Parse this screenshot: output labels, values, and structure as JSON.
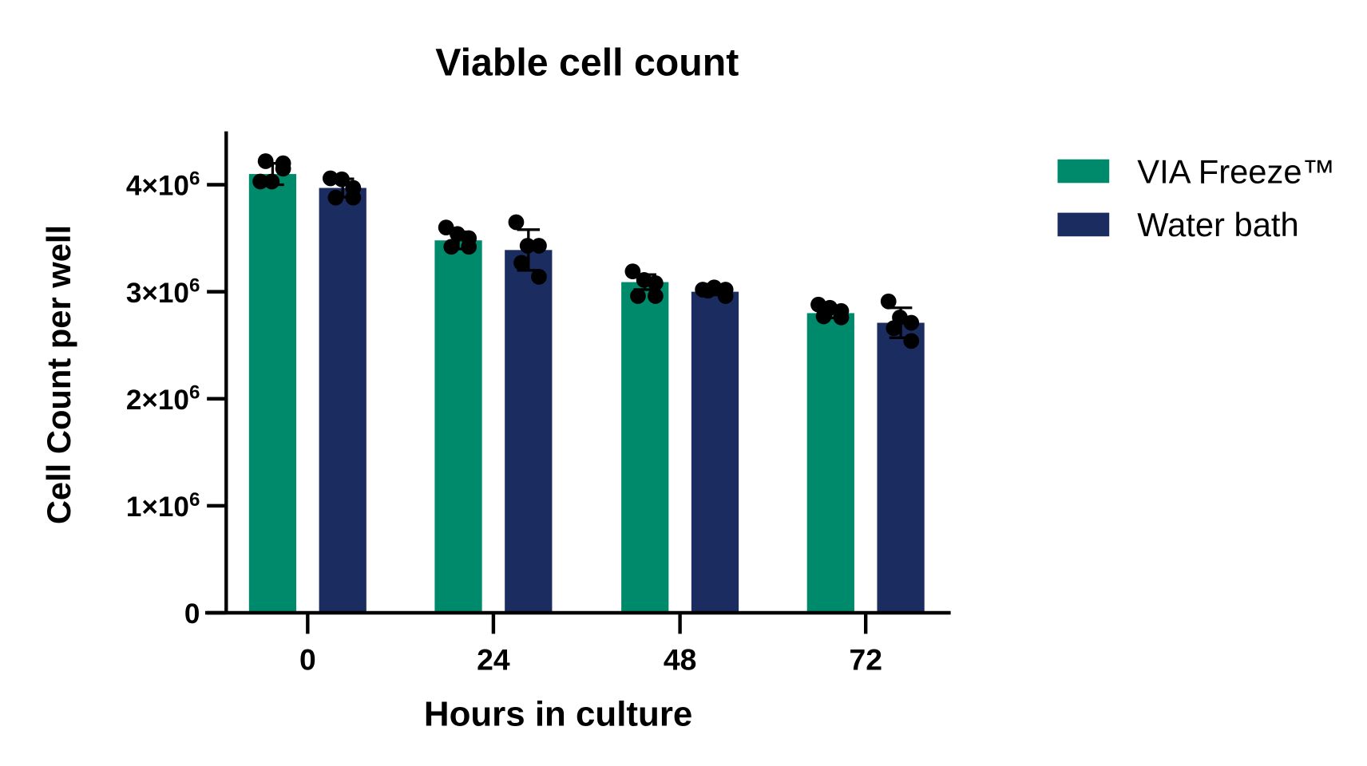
{
  "chart_data": {
    "type": "bar",
    "title": "Viable cell count",
    "xlabel": "Hours in culture",
    "ylabel": "Cell Count per well",
    "categories": [
      "0",
      "24",
      "48",
      "72"
    ],
    "ylim": [
      0,
      4500000
    ],
    "yticks": [
      0,
      1000000,
      2000000,
      3000000,
      4000000
    ],
    "ytick_labels": [
      {
        "base": "0",
        "exp": ""
      },
      {
        "base": "1×10",
        "exp": "6"
      },
      {
        "base": "2×10",
        "exp": "6"
      },
      {
        "base": "3×10",
        "exp": "6"
      },
      {
        "base": "4×10",
        "exp": "6"
      }
    ],
    "grid": false,
    "legend_placement": "right",
    "series": [
      {
        "name": "VIA Freeze™",
        "color": "#008a6c",
        "values": [
          4100000,
          3480000,
          3090000,
          2800000
        ],
        "sd": [
          100000,
          80000,
          70000,
          45000
        ],
        "points": [
          [
            4030000,
            4030000,
            4150000,
            4220000,
            4200000
          ],
          [
            3600000,
            3540000,
            3500000,
            3420000,
            3420000
          ],
          [
            3190000,
            3110000,
            3080000,
            2960000,
            2960000
          ],
          [
            2880000,
            2850000,
            2820000,
            2770000,
            2760000
          ]
        ]
      },
      {
        "name": "Water bath",
        "color": "#1b2d60",
        "values": [
          3970000,
          3390000,
          3000000,
          2710000
        ],
        "sd": [
          85000,
          190000,
          30000,
          140000
        ],
        "points": [
          [
            4060000,
            4050000,
            3970000,
            3880000,
            3880000
          ],
          [
            3650000,
            3430000,
            3430000,
            3270000,
            3140000
          ],
          [
            3020000,
            3040000,
            3020000,
            3010000,
            2960000
          ],
          [
            2910000,
            2760000,
            2710000,
            2660000,
            2540000
          ]
        ]
      }
    ]
  }
}
